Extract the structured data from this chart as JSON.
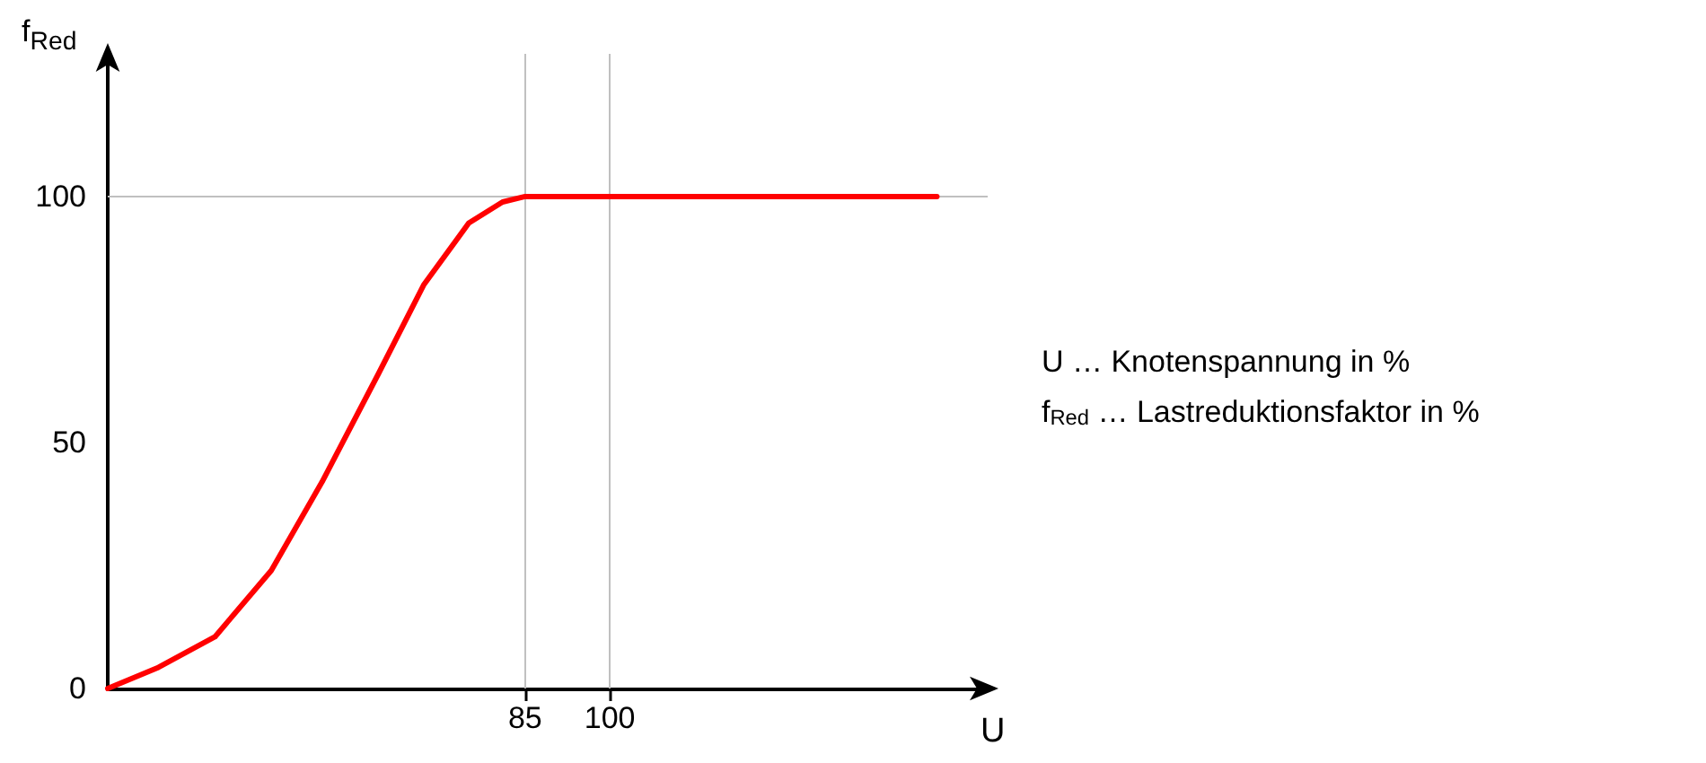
{
  "chart_data": {
    "type": "line",
    "xlabel": "U",
    "ylabel": "f$_{Red}$",
    "x": [
      11,
      20,
      30,
      40,
      49,
      59,
      67,
      75,
      81,
      85,
      100,
      158
    ],
    "series": [
      {
        "color": "#ff0000",
        "values": [
          0,
          4.3,
          10.5,
          24,
          42,
          64,
          82,
          94.6,
          98.9,
          100,
          100,
          100
        ]
      }
    ],
    "xlim": [
      11,
      167
    ],
    "xticks": [
      85,
      100
    ],
    "ylim": [
      0,
      129
    ],
    "yticks": [
      0,
      50,
      100
    ],
    "grid": false,
    "marker": "none",
    "line_style": "solid",
    "ref_lines": [
      {
        "axis": "x",
        "value": 85,
        "color": "#c0c0c0"
      },
      {
        "axis": "x",
        "value": 100,
        "color": "#c0c0c0"
      },
      {
        "axis": "y",
        "value": 100,
        "color": "#c0c0c0"
      }
    ],
    "annotations": [
      "U … Knotenspannung in %",
      "f$_{Red}$ … Lastreduktionsfaktor in %"
    ]
  }
}
